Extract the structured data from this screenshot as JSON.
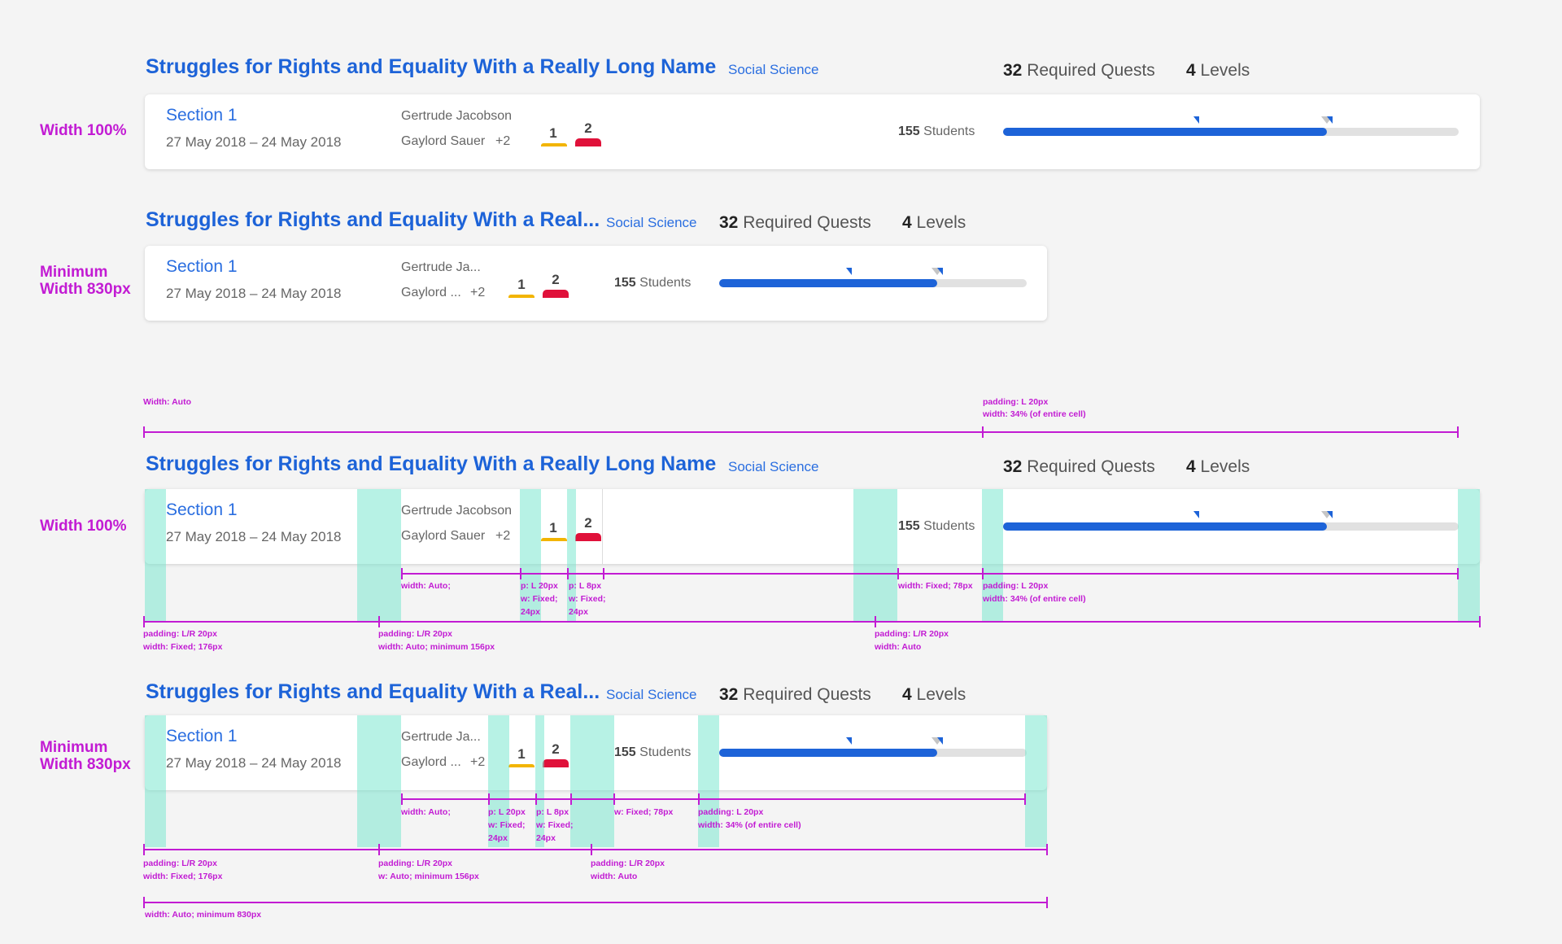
{
  "colors": {
    "background": "#f4f4f4",
    "primary_blue": "#1d63d8",
    "annotation_magenta": "#c21bd3",
    "padding_teal": "#70e5cc",
    "level1_yellow": "#f2b400",
    "level2_red": "#e0113a",
    "track_gray": "#e1e1e1"
  },
  "side_labels": {
    "width_full": "Width 100%",
    "min_line1": "Minimum",
    "min_line2": "Width 830px"
  },
  "course": {
    "title_full": "Struggles for Rights and Equality With a Really Long Name",
    "title_full_spaced": "Struggles for Rights and Equality With a Really  Long Name",
    "title_truncated": "Struggles for Rights and Equality With a Real...",
    "subject": "Social Science",
    "quests_count": "32",
    "quests_label": "Required Quests",
    "levels_count": "4",
    "levels_label": "Levels"
  },
  "section": {
    "name": "Section 1",
    "dates": "27 May 2018 – 24 May 2018",
    "teacher1_full": "Gertrude Jacobson",
    "teacher2_full": "Gaylord Sauer",
    "teacher1_short": "Gertrude Ja...",
    "teacher2_short": "Gaylord ...",
    "extra_teachers": "+2",
    "level1": "1",
    "level2": "2",
    "students_count": "155",
    "students_label": "Students",
    "progress_fraction": 0.71,
    "marker_blue_fraction": 0.43,
    "marker_gray_fraction": 0.71
  },
  "annotations": {
    "width_auto": "Width: Auto",
    "progress_pad": "padding: L 20px",
    "progress_width": "width: 34% (of entire cell)",
    "teacher_width": "width: Auto;",
    "level1_pad": "p: L 20px",
    "level1_width_a": "w: Fixed;",
    "level1_width_b": "24px",
    "level2_pad": "p: L 8px",
    "students_width": "width: Fixed; 78px",
    "students_width_short": "w: Fixed; 78px",
    "section_pad": "padding: L/R 20px",
    "section_width": "width: Fixed; 176px",
    "teachers_pad": "padding: L/R 20px",
    "teachers_width": "width: Auto; minimum 156px",
    "teachers_width_short": "w: Auto; minimum 156px",
    "middle_pad": "padding: L/R 20px",
    "middle_width": "width: Auto",
    "total_width": "width: Auto; minimum 830px"
  }
}
